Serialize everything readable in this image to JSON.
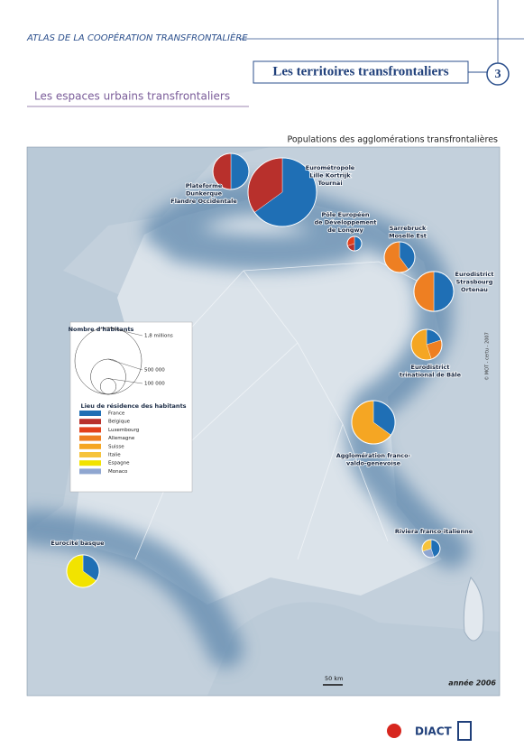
{
  "header": {
    "atlas": "ATLAS DE LA COOPÉRATION TRANSFRONTALIÈRE",
    "section": "Les territoires transfrontaliers",
    "number": "3",
    "subtitle": "Les espaces urbains transfrontaliers"
  },
  "map": {
    "title": "Populations des agglomérations transfrontalières",
    "year": "année 2006",
    "scale": "50 km",
    "credit": "© MOT - certu - 2007",
    "legend": {
      "size_title": "Nombre d'habitants",
      "sizes": [
        {
          "value": 1800000,
          "label": "1,8 millions"
        },
        {
          "value": 500000,
          "label": "500 000"
        },
        {
          "value": 100000,
          "label": "100 000"
        }
      ],
      "residence_title": "Lieu de résidence des habitants",
      "countries": [
        {
          "name": "France",
          "color": "#1f6fb5"
        },
        {
          "name": "Belgique",
          "color": "#b8302c"
        },
        {
          "name": "Luxembourg",
          "color": "#e2401c"
        },
        {
          "name": "Allemagne",
          "color": "#ee7f22"
        },
        {
          "name": "Suisse",
          "color": "#f5a623"
        },
        {
          "name": "Italie",
          "color": "#f6c33c"
        },
        {
          "name": "Espagne",
          "color": "#f2e300"
        },
        {
          "name": "Monaco",
          "color": "#8fa6d0"
        }
      ]
    },
    "agglomerations": [
      {
        "lines": [
          "Plateforme",
          "Dunkerque",
          "Flandre Occidentale"
        ],
        "population": 525000,
        "shares": {
          "France": 50,
          "Belgique": 50
        }
      },
      {
        "lines": [
          "Eurométropole",
          "Lille Kortrijk",
          "Tournai"
        ],
        "population": 1900000,
        "shares": {
          "France": 65,
          "Belgique": 35
        }
      },
      {
        "lines": [
          "Pôle Européen",
          "de Développement",
          "de Longwy"
        ],
        "population": 85000,
        "shares": {
          "France": 50,
          "Belgique": 20,
          "Luxembourg": 30
        }
      },
      {
        "lines": [
          "Sarrebruck",
          "Moselle Est"
        ],
        "population": 380000,
        "shares": {
          "France": 40,
          "Allemagne": 60
        }
      },
      {
        "lines": [
          "Eurodistrict",
          "Strasbourg",
          "Ortenau"
        ],
        "population": 640000,
        "shares": {
          "France": 50,
          "Allemagne": 50
        }
      },
      {
        "lines": [
          "Eurodistrict",
          "trinational de Bâle"
        ],
        "population": 380000,
        "shares": {
          "France": 20,
          "Allemagne": 25,
          "Suisse": 55
        }
      },
      {
        "lines": [
          "Agglomération franco-",
          "valdo-genevoise"
        ],
        "population": 760000,
        "shares": {
          "France": 35,
          "Suisse": 65
        }
      },
      {
        "lines": [
          "Riviera franco-italienne"
        ],
        "population": 130000,
        "shares": {
          "France": 45,
          "Monaco": 25,
          "Italie": 30
        }
      },
      {
        "lines": [
          "Eurocité basque"
        ],
        "population": 430000,
        "shares": {
          "France": 35,
          "Espagne": 65
        }
      }
    ]
  },
  "footer": {
    "logo": "DIACT"
  }
}
